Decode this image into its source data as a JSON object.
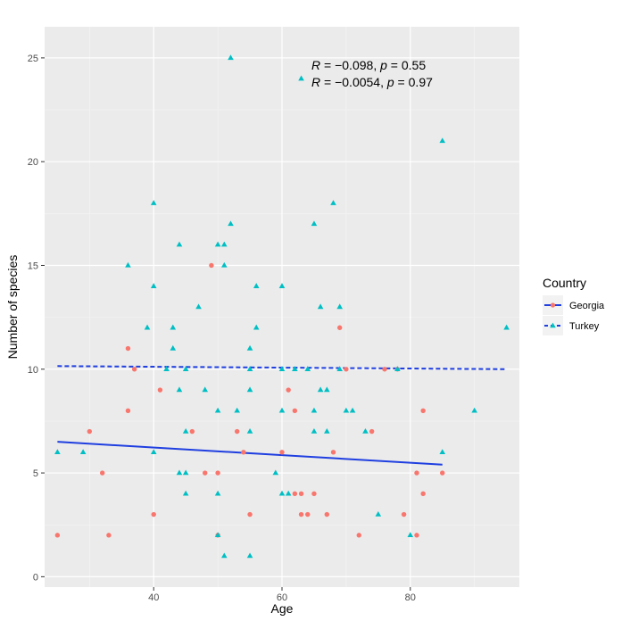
{
  "chart_data": {
    "type": "scatter",
    "xlabel": "Age",
    "ylabel": "Number of species",
    "xlim": [
      23,
      97
    ],
    "ylim": [
      -0.5,
      26.5
    ],
    "x_ticks": [
      40,
      60,
      80
    ],
    "y_ticks": [
      0,
      5,
      10,
      15,
      20,
      25
    ],
    "grid": true,
    "legend": {
      "title": "Country",
      "placement": "right",
      "entries": [
        "Georgia",
        "Turkey"
      ]
    },
    "annotations": [
      {
        "R": "−0.098",
        "p": "0.55",
        "color": "#000000"
      },
      {
        "R": "−0.0054",
        "p": "0.97",
        "color": "#000000"
      }
    ],
    "series": [
      {
        "name": "Georgia",
        "color": "#F8766D",
        "marker": "circle",
        "points": [
          [
            25,
            2
          ],
          [
            30,
            7
          ],
          [
            32,
            5
          ],
          [
            33,
            2
          ],
          [
            36,
            11
          ],
          [
            36,
            8
          ],
          [
            37,
            10
          ],
          [
            40,
            3
          ],
          [
            41,
            9
          ],
          [
            46,
            7
          ],
          [
            48,
            5
          ],
          [
            49,
            15
          ],
          [
            50,
            5
          ],
          [
            50,
            2
          ],
          [
            53,
            7
          ],
          [
            54,
            6
          ],
          [
            55,
            3
          ],
          [
            60,
            6
          ],
          [
            61,
            9
          ],
          [
            62,
            8
          ],
          [
            62,
            4
          ],
          [
            63,
            4
          ],
          [
            63,
            3
          ],
          [
            64,
            3
          ],
          [
            65,
            4
          ],
          [
            67,
            3
          ],
          [
            68,
            6
          ],
          [
            69,
            12
          ],
          [
            70,
            10
          ],
          [
            72,
            2
          ],
          [
            74,
            7
          ],
          [
            76,
            10
          ],
          [
            78,
            10
          ],
          [
            79,
            3
          ],
          [
            81,
            5
          ],
          [
            81,
            2
          ],
          [
            82,
            4
          ],
          [
            82,
            8
          ],
          [
            85,
            5
          ]
        ],
        "regression": {
          "x": [
            25,
            85
          ],
          "y": [
            6.5,
            5.4
          ],
          "color": "#1f3fe0",
          "linetype": "solid"
        }
      },
      {
        "name": "Turkey",
        "color": "#00BFC4",
        "marker": "triangle",
        "points": [
          [
            25,
            6
          ],
          [
            29,
            6
          ],
          [
            36,
            15
          ],
          [
            39,
            12
          ],
          [
            40,
            18
          ],
          [
            40,
            14
          ],
          [
            40,
            6
          ],
          [
            42,
            10
          ],
          [
            43,
            12
          ],
          [
            43,
            11
          ],
          [
            44,
            16
          ],
          [
            44,
            9
          ],
          [
            44,
            5
          ],
          [
            45,
            5
          ],
          [
            45,
            7
          ],
          [
            45,
            4
          ],
          [
            45,
            10
          ],
          [
            47,
            13
          ],
          [
            48,
            9
          ],
          [
            50,
            16
          ],
          [
            50,
            8
          ],
          [
            50,
            4
          ],
          [
            50,
            2
          ],
          [
            51,
            16
          ],
          [
            51,
            15
          ],
          [
            51,
            1
          ],
          [
            52,
            17
          ],
          [
            52,
            25
          ],
          [
            53,
            8
          ],
          [
            55,
            11
          ],
          [
            55,
            10
          ],
          [
            55,
            9
          ],
          [
            55,
            7
          ],
          [
            55,
            1
          ],
          [
            56,
            14
          ],
          [
            56,
            12
          ],
          [
            59,
            5
          ],
          [
            60,
            14
          ],
          [
            60,
            10
          ],
          [
            60,
            8
          ],
          [
            60,
            4
          ],
          [
            61,
            4
          ],
          [
            62,
            10
          ],
          [
            63,
            24
          ],
          [
            64,
            10
          ],
          [
            65,
            17
          ],
          [
            65,
            8
          ],
          [
            65,
            7
          ],
          [
            66,
            13
          ],
          [
            66,
            9
          ],
          [
            67,
            9
          ],
          [
            67,
            7
          ],
          [
            68,
            18
          ],
          [
            69,
            13
          ],
          [
            69,
            10
          ],
          [
            70,
            8
          ],
          [
            71,
            8
          ],
          [
            73,
            7
          ],
          [
            75,
            3
          ],
          [
            78,
            10
          ],
          [
            80,
            2
          ],
          [
            85,
            21
          ],
          [
            85,
            6
          ],
          [
            90,
            8
          ],
          [
            95,
            12
          ]
        ],
        "regression": {
          "x": [
            25,
            95
          ],
          "y": [
            10.15,
            10.0
          ],
          "color": "#1f3fe0",
          "linetype": "dashed"
        }
      }
    ]
  }
}
